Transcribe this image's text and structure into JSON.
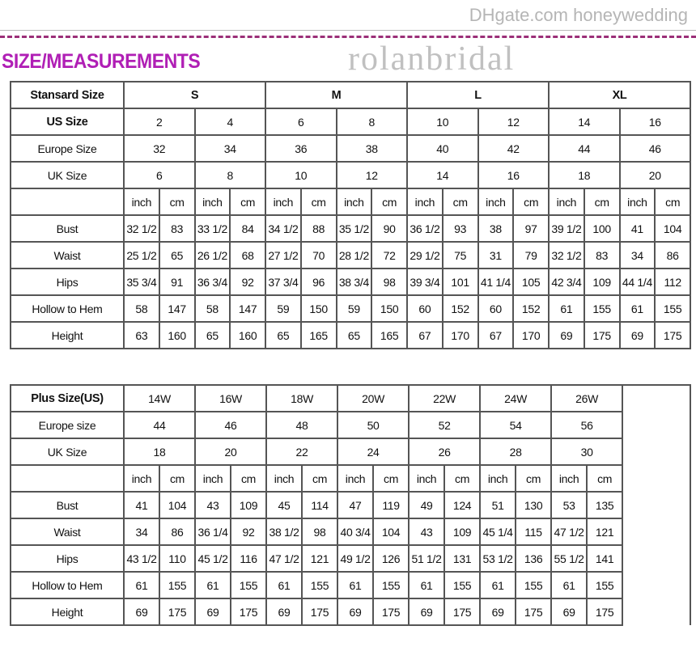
{
  "title": "SIZE/MEASUREMENTS",
  "colors": {
    "title": "#b01fb5",
    "dashed_rule": "#9b2f78"
  },
  "standard": {
    "header_label": "Stansard Size",
    "sizes": [
      "S",
      "M",
      "L",
      "XL"
    ],
    "us_label": "US Size",
    "us": [
      "2",
      "4",
      "6",
      "8",
      "10",
      "12",
      "14",
      "16"
    ],
    "europe_label": "Europe Size",
    "europe": [
      "32",
      "34",
      "36",
      "38",
      "40",
      "42",
      "44",
      "46"
    ],
    "uk_label": "UK Size",
    "uk": [
      "6",
      "8",
      "10",
      "12",
      "14",
      "16",
      "18",
      "20"
    ],
    "units": [
      "inch",
      "cm"
    ],
    "rows": [
      {
        "label": "Bust",
        "values": [
          "32 1/2",
          "83",
          "33 1/2",
          "84",
          "34 1/2",
          "88",
          "35 1/2",
          "90",
          "36 1/2",
          "93",
          "38",
          "97",
          "39 1/2",
          "100",
          "41",
          "104"
        ]
      },
      {
        "label": "Waist",
        "values": [
          "25 1/2",
          "65",
          "26 1/2",
          "68",
          "27 1/2",
          "70",
          "28 1/2",
          "72",
          "29 1/2",
          "75",
          "31",
          "79",
          "32 1/2",
          "83",
          "34",
          "86"
        ]
      },
      {
        "label": "Hips",
        "values": [
          "35 3/4",
          "91",
          "36 3/4",
          "92",
          "37 3/4",
          "96",
          "38 3/4",
          "98",
          "39 3/4",
          "101",
          "41 1/4",
          "105",
          "42 3/4",
          "109",
          "44 1/4",
          "112"
        ]
      },
      {
        "label": "Hollow to Hem",
        "values": [
          "58",
          "147",
          "58",
          "147",
          "59",
          "150",
          "59",
          "150",
          "60",
          "152",
          "60",
          "152",
          "61",
          "155",
          "61",
          "155"
        ]
      },
      {
        "label": "Height",
        "values": [
          "63",
          "160",
          "65",
          "160",
          "65",
          "165",
          "65",
          "165",
          "67",
          "170",
          "67",
          "170",
          "69",
          "175",
          "69",
          "175"
        ]
      }
    ]
  },
  "plus": {
    "header_label": "Plus Size(US)",
    "sizes": [
      "14W",
      "16W",
      "18W",
      "20W",
      "22W",
      "24W",
      "26W"
    ],
    "europe_label": "Europe size",
    "europe": [
      "44",
      "46",
      "48",
      "50",
      "52",
      "54",
      "56"
    ],
    "uk_label": "UK Size",
    "uk": [
      "18",
      "20",
      "22",
      "24",
      "26",
      "28",
      "30"
    ],
    "units": [
      "inch",
      "cm"
    ],
    "rows": [
      {
        "label": "Bust",
        "values": [
          "41",
          "104",
          "43",
          "109",
          "45",
          "114",
          "47",
          "119",
          "49",
          "124",
          "51",
          "130",
          "53",
          "135"
        ]
      },
      {
        "label": "Waist",
        "values": [
          "34",
          "86",
          "36 1/4",
          "92",
          "38 1/2",
          "98",
          "40 3/4",
          "104",
          "43",
          "109",
          "45 1/4",
          "115",
          "47 1/2",
          "121"
        ]
      },
      {
        "label": "Hips",
        "values": [
          "43 1/2",
          "110",
          "45 1/2",
          "116",
          "47 1/2",
          "121",
          "49 1/2",
          "126",
          "51 1/2",
          "131",
          "53 1/2",
          "136",
          "55 1/2",
          "141"
        ]
      },
      {
        "label": "Hollow to Hem",
        "values": [
          "61",
          "155",
          "61",
          "155",
          "61",
          "155",
          "61",
          "155",
          "61",
          "155",
          "61",
          "155",
          "61",
          "155"
        ]
      },
      {
        "label": "Height",
        "values": [
          "69",
          "175",
          "69",
          "175",
          "69",
          "175",
          "69",
          "175",
          "69",
          "175",
          "69",
          "175",
          "69",
          "175"
        ]
      }
    ]
  },
  "watermark": {
    "primary": "rolanbridal",
    "secondary": "DHgate.com honeywedding"
  }
}
